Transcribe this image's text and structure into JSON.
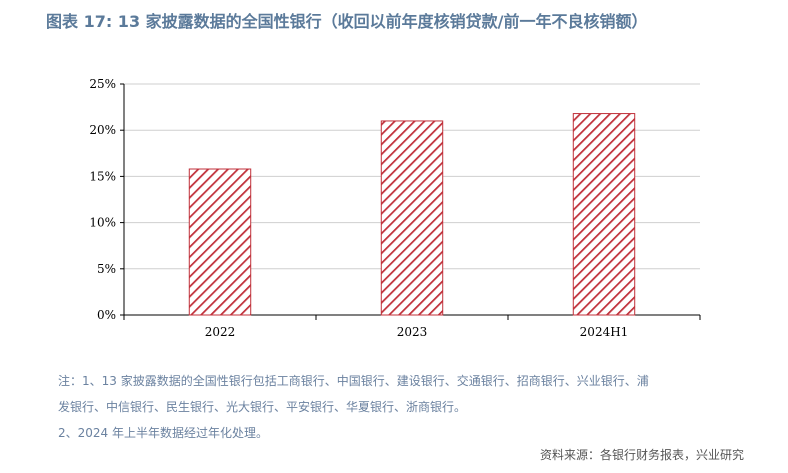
{
  "title": "图表 17: 13 家披露数据的全国性银行（收回以前年度核销贷款/前一年不良核销额）",
  "chart_data": {
    "type": "bar",
    "categories": [
      "2022",
      "2023",
      "2024H1"
    ],
    "values": [
      15.8,
      21.0,
      21.8
    ],
    "ylim": [
      0,
      25
    ],
    "yticks": [
      "0%",
      "5%",
      "10%",
      "15%",
      "20%",
      "25%"
    ],
    "ytick_values": [
      0,
      5,
      10,
      15,
      20,
      25
    ],
    "bar_color": "#c0303a",
    "bar_fill": "diagonal-hatch",
    "grid": true,
    "legend": "none"
  },
  "notes": {
    "line1": "注：1、13 家披露数据的全国性银行包括工商银行、中国银行、建设银行、交通银行、招商银行、兴业银行、浦",
    "line2": "发银行、中信银行、民生银行、光大银行、平安银行、华夏银行、浙商银行。",
    "line3": "2、2024 年上半年数据经过年化处理。"
  },
  "source": "资料来源：各银行财务报表，兴业研究"
}
